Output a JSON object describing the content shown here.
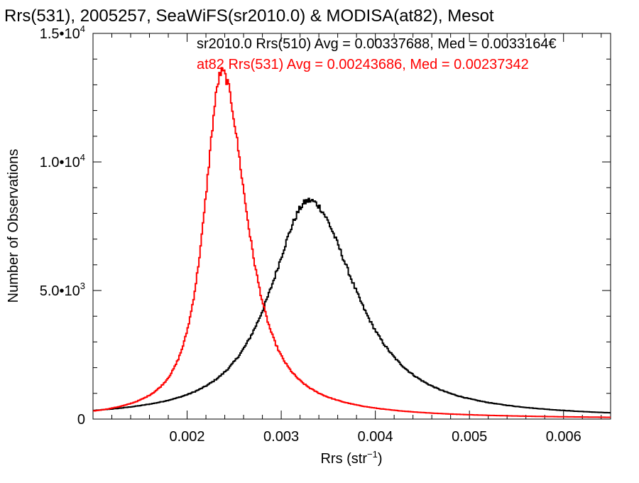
{
  "chart_data": {
    "type": "line",
    "title": "Rrs(531), 2005257, SeaWiFS(sr2010.0) & MODISA(at82), Mesot",
    "xlabel": "Rrs (str",
    "xlabel_sup": "−1",
    "xlabel_close": ")",
    "ylabel": "Number of Observations",
    "xlim": [
      0.001,
      0.0065
    ],
    "ylim": [
      0,
      15000
    ],
    "xticks": [
      {
        "value": 0.002,
        "label": "0.002"
      },
      {
        "value": 0.003,
        "label": "0.003"
      },
      {
        "value": 0.004,
        "label": "0.004"
      },
      {
        "value": 0.005,
        "label": "0.005"
      },
      {
        "value": 0.006,
        "label": "0.006"
      }
    ],
    "yticks": [
      {
        "value": 0,
        "mant": "0",
        "exp": ""
      },
      {
        "value": 5000,
        "mant": "5.0•10",
        "exp": "3"
      },
      {
        "value": 10000,
        "mant": "1.0•10",
        "exp": "4"
      },
      {
        "value": 15000,
        "mant": "1.5•10",
        "exp": "4"
      }
    ],
    "legend_position": "top-right",
    "series": [
      {
        "color": "#000000",
        "legend": "sr2010.0 Rrs(510) Avg = 0.00337688, Med = 0.0033164€",
        "mean": 0.0033,
        "peak": 8500,
        "sigma_left": 0.00055,
        "sigma_right": 0.00065
      },
      {
        "color": "#ff0000",
        "legend": "at82 Rrs(531) Avg = 0.00243686, Med = 0.00237342",
        "mean": 0.00237,
        "peak": 13500,
        "sigma_left": 0.00025,
        "sigma_right": 0.00035
      }
    ]
  }
}
